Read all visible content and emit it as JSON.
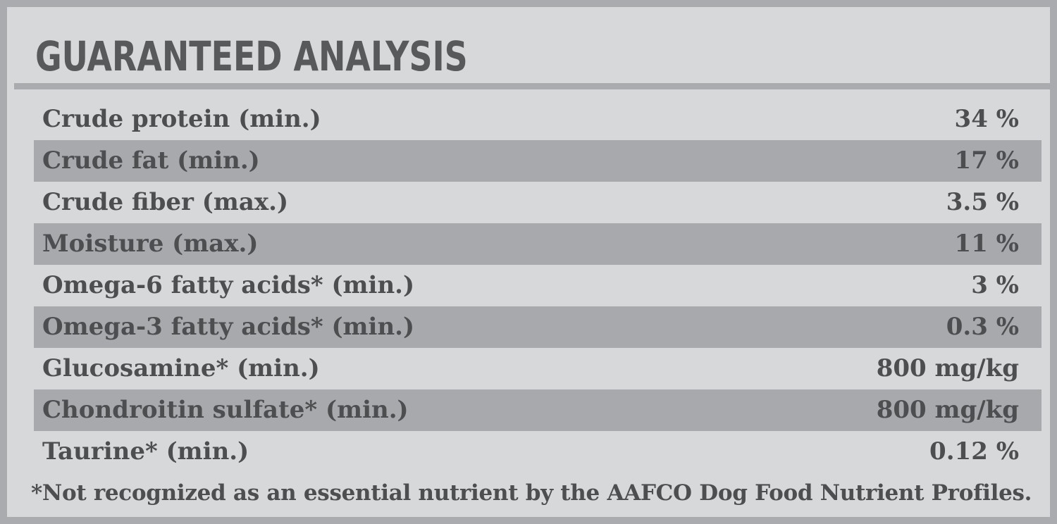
{
  "title": "GUARANTEED ANALYSIS",
  "rows": [
    {
      "label": "Crude protein (min.)",
      "value": "34 %"
    },
    {
      "label": "Crude fat (min.)",
      "value": "17 %"
    },
    {
      "label": "Crude fiber (max.)",
      "value": "3.5 %"
    },
    {
      "label": "Moisture (max.)",
      "value": "11 %"
    },
    {
      "label": "Omega-6 fatty acids* (min.)",
      "value": "3 %"
    },
    {
      "label": "Omega-3 fatty acids* (min.)",
      "value": "0.3 %"
    },
    {
      "label": "Glucosamine* (min.)",
      "value": "800 mg/kg"
    },
    {
      "label": "Chondroitin sulfate* (min.)",
      "value": "800 mg/kg"
    },
    {
      "label": "Taurine* (min.)",
      "value": "0.12 %"
    }
  ],
  "footnote": "*Not recognized as an essential nutrient by the AAFCO Dog Food Nutrient Profiles.",
  "colors": {
    "panel_background": "#d7d8da",
    "border": "#a9abae",
    "shaded_row": "#a7a9ac",
    "text": "#4d4e50"
  }
}
